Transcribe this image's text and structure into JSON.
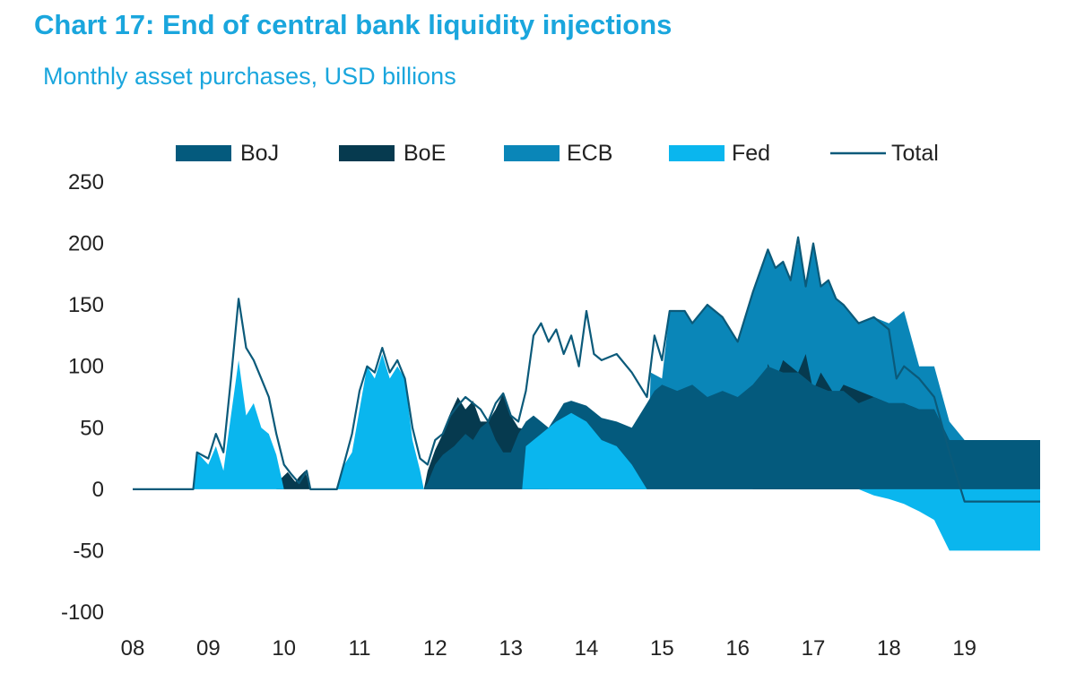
{
  "chart_data": {
    "type": "area",
    "title": "Chart 17: End of central bank liquidity injections",
    "subtitle": "Monthly asset purchases, USD billions",
    "xlabel": "",
    "ylabel": "",
    "ylim": [
      -100,
      250
    ],
    "yticks": [
      "250",
      "200",
      "150",
      "100",
      "50",
      "0",
      "-50",
      "-100"
    ],
    "xticks": [
      "08",
      "09",
      "10",
      "11",
      "12",
      "13",
      "14",
      "15",
      "16",
      "17",
      "18",
      "19"
    ],
    "legend_position": "top",
    "colors": {
      "boj": "#045a7d",
      "boe": "#063a4f",
      "ecb": "#0a86b8",
      "fed": "#0ab6ee",
      "total": "#0b5a7a"
    },
    "series": [
      {
        "name": "BoJ",
        "values": [
          [
            8.0,
            0
          ],
          [
            11.85,
            0
          ],
          [
            11.9,
            5
          ],
          [
            12.0,
            20
          ],
          [
            12.1,
            28
          ],
          [
            12.25,
            35
          ],
          [
            12.4,
            45
          ],
          [
            12.5,
            40
          ],
          [
            12.6,
            50
          ],
          [
            12.7,
            55
          ],
          [
            12.8,
            40
          ],
          [
            12.9,
            30
          ],
          [
            13.0,
            30
          ],
          [
            13.1,
            45
          ],
          [
            13.2,
            55
          ],
          [
            13.3,
            60
          ],
          [
            13.5,
            50
          ],
          [
            13.6,
            60
          ],
          [
            13.7,
            70
          ],
          [
            13.8,
            72
          ],
          [
            14.0,
            68
          ],
          [
            14.2,
            58
          ],
          [
            14.4,
            55
          ],
          [
            14.6,
            50
          ],
          [
            14.7,
            60
          ],
          [
            14.8,
            70
          ],
          [
            14.9,
            80
          ],
          [
            15.0,
            85
          ],
          [
            15.2,
            80
          ],
          [
            15.4,
            85
          ],
          [
            15.6,
            75
          ],
          [
            15.8,
            80
          ],
          [
            16.0,
            75
          ],
          [
            16.2,
            85
          ],
          [
            16.4,
            100
          ],
          [
            16.6,
            95
          ],
          [
            16.8,
            95
          ],
          [
            17.0,
            85
          ],
          [
            17.2,
            80
          ],
          [
            17.4,
            80
          ],
          [
            17.6,
            70
          ],
          [
            17.8,
            75
          ],
          [
            18.0,
            70
          ],
          [
            18.2,
            70
          ],
          [
            18.4,
            65
          ],
          [
            18.6,
            65
          ],
          [
            18.8,
            40
          ],
          [
            20.0,
            40
          ]
        ]
      },
      {
        "name": "BoE",
        "values": [
          [
            8.0,
            0
          ],
          [
            9.9,
            0
          ],
          [
            9.95,
            8
          ],
          [
            10.05,
            14
          ],
          [
            10.15,
            6
          ],
          [
            10.2,
            10
          ],
          [
            10.28,
            15
          ],
          [
            10.35,
            0
          ],
          [
            11.85,
            0
          ],
          [
            11.9,
            15
          ],
          [
            12.0,
            32
          ],
          [
            12.1,
            45
          ],
          [
            12.2,
            62
          ],
          [
            12.3,
            75
          ],
          [
            12.4,
            65
          ],
          [
            12.5,
            72
          ],
          [
            12.6,
            55
          ],
          [
            12.7,
            55
          ],
          [
            12.8,
            65
          ],
          [
            12.9,
            78
          ],
          [
            13.0,
            60
          ],
          [
            13.1,
            50
          ],
          [
            13.25,
            48
          ],
          [
            13.4,
            55
          ],
          [
            13.5,
            0
          ],
          [
            16.0,
            0
          ],
          [
            16.2,
            0
          ],
          [
            16.4,
            102
          ],
          [
            16.5,
            88
          ],
          [
            16.6,
            105
          ],
          [
            16.8,
            95
          ],
          [
            16.9,
            110
          ],
          [
            17.0,
            80
          ],
          [
            17.1,
            95
          ],
          [
            17.3,
            75
          ],
          [
            17.4,
            85
          ],
          [
            17.8,
            75
          ],
          [
            18.0,
            70
          ],
          [
            18.2,
            70
          ],
          [
            18.4,
            65
          ],
          [
            18.6,
            65
          ],
          [
            18.8,
            40
          ],
          [
            20.0,
            40
          ]
        ]
      },
      {
        "name": "ECB",
        "values": [
          [
            8.0,
            0
          ],
          [
            14.8,
            0
          ],
          [
            14.85,
            95
          ],
          [
            15.0,
            90
          ],
          [
            15.1,
            145
          ],
          [
            15.3,
            145
          ],
          [
            15.4,
            135
          ],
          [
            15.6,
            150
          ],
          [
            15.8,
            140
          ],
          [
            16.0,
            120
          ],
          [
            16.2,
            160
          ],
          [
            16.4,
            195
          ],
          [
            16.5,
            180
          ],
          [
            16.6,
            185
          ],
          [
            16.7,
            170
          ],
          [
            16.8,
            200
          ],
          [
            16.9,
            165
          ],
          [
            17.0,
            200
          ],
          [
            17.1,
            165
          ],
          [
            17.2,
            170
          ],
          [
            17.3,
            155
          ],
          [
            17.4,
            150
          ],
          [
            17.6,
            135
          ],
          [
            17.8,
            140
          ],
          [
            18.0,
            135
          ],
          [
            18.2,
            145
          ],
          [
            18.4,
            100
          ],
          [
            18.6,
            100
          ],
          [
            18.8,
            55
          ],
          [
            19.0,
            40
          ],
          [
            20.0,
            40
          ]
        ]
      },
      {
        "name": "Fed",
        "values": [
          [
            8.0,
            0
          ],
          [
            8.8,
            0
          ],
          [
            8.85,
            30
          ],
          [
            9.0,
            20
          ],
          [
            9.1,
            35
          ],
          [
            9.2,
            15
          ],
          [
            9.3,
            60
          ],
          [
            9.4,
            105
          ],
          [
            9.5,
            60
          ],
          [
            9.6,
            70
          ],
          [
            9.7,
            50
          ],
          [
            9.8,
            45
          ],
          [
            9.9,
            28
          ],
          [
            10.0,
            0
          ],
          [
            10.7,
            0
          ],
          [
            10.8,
            20
          ],
          [
            10.9,
            30
          ],
          [
            11.0,
            65
          ],
          [
            11.1,
            100
          ],
          [
            11.2,
            90
          ],
          [
            11.3,
            110
          ],
          [
            11.4,
            90
          ],
          [
            11.5,
            100
          ],
          [
            11.6,
            90
          ],
          [
            11.7,
            40
          ],
          [
            11.8,
            15
          ],
          [
            11.85,
            0
          ],
          [
            13.15,
            0
          ],
          [
            13.2,
            35
          ],
          [
            13.4,
            45
          ],
          [
            13.6,
            55
          ],
          [
            13.8,
            62
          ],
          [
            14.0,
            55
          ],
          [
            14.2,
            40
          ],
          [
            14.4,
            35
          ],
          [
            14.6,
            20
          ],
          [
            14.8,
            0
          ],
          [
            17.6,
            0
          ],
          [
            17.8,
            -5
          ],
          [
            18.0,
            -8
          ],
          [
            18.2,
            -12
          ],
          [
            18.4,
            -18
          ],
          [
            18.6,
            -25
          ],
          [
            18.8,
            -50
          ],
          [
            20.0,
            -50
          ]
        ]
      },
      {
        "name": "Total",
        "values": [
          [
            8.0,
            0
          ],
          [
            8.8,
            0
          ],
          [
            8.85,
            30
          ],
          [
            9.0,
            25
          ],
          [
            9.1,
            45
          ],
          [
            9.2,
            30
          ],
          [
            9.3,
            90
          ],
          [
            9.4,
            155
          ],
          [
            9.5,
            115
          ],
          [
            9.6,
            105
          ],
          [
            9.7,
            90
          ],
          [
            9.8,
            75
          ],
          [
            9.9,
            45
          ],
          [
            10.0,
            20
          ],
          [
            10.1,
            12
          ],
          [
            10.2,
            5
          ],
          [
            10.3,
            15
          ],
          [
            10.35,
            0
          ],
          [
            10.7,
            0
          ],
          [
            10.8,
            22
          ],
          [
            10.9,
            45
          ],
          [
            11.0,
            80
          ],
          [
            11.1,
            100
          ],
          [
            11.2,
            95
          ],
          [
            11.3,
            115
          ],
          [
            11.4,
            95
          ],
          [
            11.5,
            105
          ],
          [
            11.6,
            90
          ],
          [
            11.7,
            50
          ],
          [
            11.8,
            25
          ],
          [
            11.9,
            20
          ],
          [
            12.0,
            40
          ],
          [
            12.1,
            45
          ],
          [
            12.2,
            60
          ],
          [
            12.3,
            68
          ],
          [
            12.4,
            75
          ],
          [
            12.5,
            70
          ],
          [
            12.6,
            65
          ],
          [
            12.7,
            55
          ],
          [
            12.8,
            70
          ],
          [
            12.9,
            78
          ],
          [
            13.0,
            60
          ],
          [
            13.1,
            55
          ],
          [
            13.2,
            80
          ],
          [
            13.3,
            125
          ],
          [
            13.4,
            135
          ],
          [
            13.5,
            120
          ],
          [
            13.6,
            130
          ],
          [
            13.7,
            110
          ],
          [
            13.8,
            125
          ],
          [
            13.9,
            100
          ],
          [
            14.0,
            145
          ],
          [
            14.1,
            110
          ],
          [
            14.2,
            105
          ],
          [
            14.4,
            110
          ],
          [
            14.6,
            95
          ],
          [
            14.8,
            75
          ],
          [
            14.9,
            125
          ],
          [
            15.0,
            105
          ],
          [
            15.1,
            145
          ],
          [
            15.3,
            145
          ],
          [
            15.4,
            135
          ],
          [
            15.6,
            150
          ],
          [
            15.8,
            140
          ],
          [
            16.0,
            120
          ],
          [
            16.2,
            160
          ],
          [
            16.4,
            195
          ],
          [
            16.5,
            180
          ],
          [
            16.6,
            185
          ],
          [
            16.7,
            170
          ],
          [
            16.8,
            205
          ],
          [
            16.9,
            165
          ],
          [
            17.0,
            200
          ],
          [
            17.1,
            165
          ],
          [
            17.2,
            170
          ],
          [
            17.3,
            155
          ],
          [
            17.4,
            150
          ],
          [
            17.6,
            135
          ],
          [
            17.8,
            140
          ],
          [
            18.0,
            130
          ],
          [
            18.1,
            90
          ],
          [
            18.2,
            100
          ],
          [
            18.4,
            90
          ],
          [
            18.6,
            75
          ],
          [
            18.8,
            30
          ],
          [
            19.0,
            -10
          ],
          [
            20.0,
            -10
          ]
        ]
      }
    ]
  }
}
